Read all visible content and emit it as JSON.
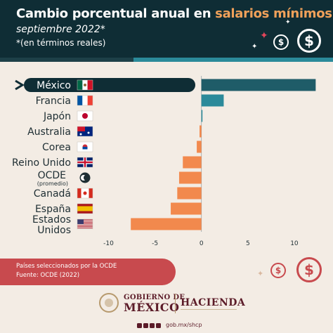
{
  "header": {
    "title_part1": "Cambio porcentual anual en ",
    "title_part2": "salarios mínimos",
    "subtitle": "septiembre 2022*",
    "note": "*(en términos reales)"
  },
  "colors": {
    "header_bg": "#0f2d35",
    "page_bg": "#f3ece4",
    "highlight_text": "#f0a15a",
    "mexico_bar": "#0f2d35",
    "positive_bar": "#2b8a9a",
    "negative_bar": "#f2894d",
    "footnote_bg": "#c84a4e",
    "brand": "#5b1b28"
  },
  "chart_data": {
    "type": "bar",
    "orientation": "horizontal",
    "categories": [
      "México",
      "Francia",
      "Japón",
      "Australia",
      "Corea",
      "Reino Unido",
      "OCDE",
      "Canadá",
      "España",
      "Estados Unidos"
    ],
    "category_lines": [
      [
        "México"
      ],
      [
        "Francia"
      ],
      [
        "Japón"
      ],
      [
        "Australia"
      ],
      [
        "Corea"
      ],
      [
        "Reino Unido"
      ],
      [
        "OCDE",
        "(promedio)"
      ],
      [
        "Canadá"
      ],
      [
        "España"
      ],
      [
        "Estados",
        "Unidos"
      ]
    ],
    "values": [
      12.3,
      2.4,
      0.1,
      -0.2,
      -0.5,
      -2.0,
      -2.4,
      -2.6,
      -3.3,
      -7.6
    ],
    "flags": [
      "mx",
      "fr",
      "jp",
      "au",
      "kr",
      "gb",
      "oecd",
      "ca",
      "es",
      "us"
    ],
    "xlim": [
      -12,
      12.5
    ],
    "xticks": [
      -10,
      -5,
      0,
      5,
      10
    ],
    "xtick_labels": [
      "-10",
      "-5",
      "0",
      "5",
      "10"
    ],
    "highlight": "México"
  },
  "footnote": {
    "line1": "Países seleccionados por la OCDE",
    "line2": "Fuente: OCDE (2022)"
  },
  "logos": {
    "gob_line1": "GOBIERNO DE",
    "gob_line2": "MÉXICO",
    "hacienda": "HACIENDA"
  },
  "footer": {
    "url": "gob.mx/shcp",
    "social_icons": [
      "facebook-icon",
      "twitter-icon",
      "youtube-icon",
      "instagram-icon"
    ]
  }
}
